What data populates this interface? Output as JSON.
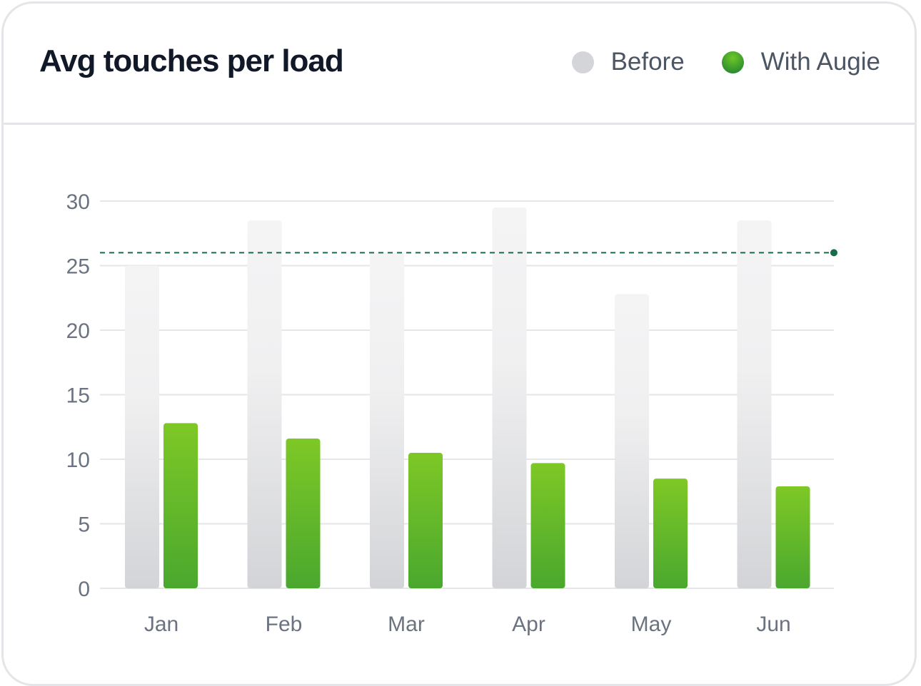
{
  "chart_data": {
    "type": "bar",
    "title": "Avg touches per load",
    "categories": [
      "Jan",
      "Feb",
      "Mar",
      "Apr",
      "May",
      "Jun"
    ],
    "series": [
      {
        "name": "Before",
        "values": [
          25,
          28.5,
          26,
          29.5,
          22.8,
          28.5
        ],
        "color": "#d4d5d8"
      },
      {
        "name": "With Augie",
        "values": [
          12.8,
          11.6,
          10.5,
          9.7,
          8.5,
          7.9
        ],
        "color": "#5cb82a"
      }
    ],
    "reference_line": {
      "value": 26,
      "color": "#1a6b4a",
      "style": "dashed"
    },
    "ylim": [
      0,
      30
    ],
    "yticks": [
      "0",
      "5",
      "10",
      "15",
      "20",
      "25",
      "30"
    ],
    "xlabel": "",
    "ylabel": "",
    "grid": true,
    "legend_position": "top-right"
  }
}
